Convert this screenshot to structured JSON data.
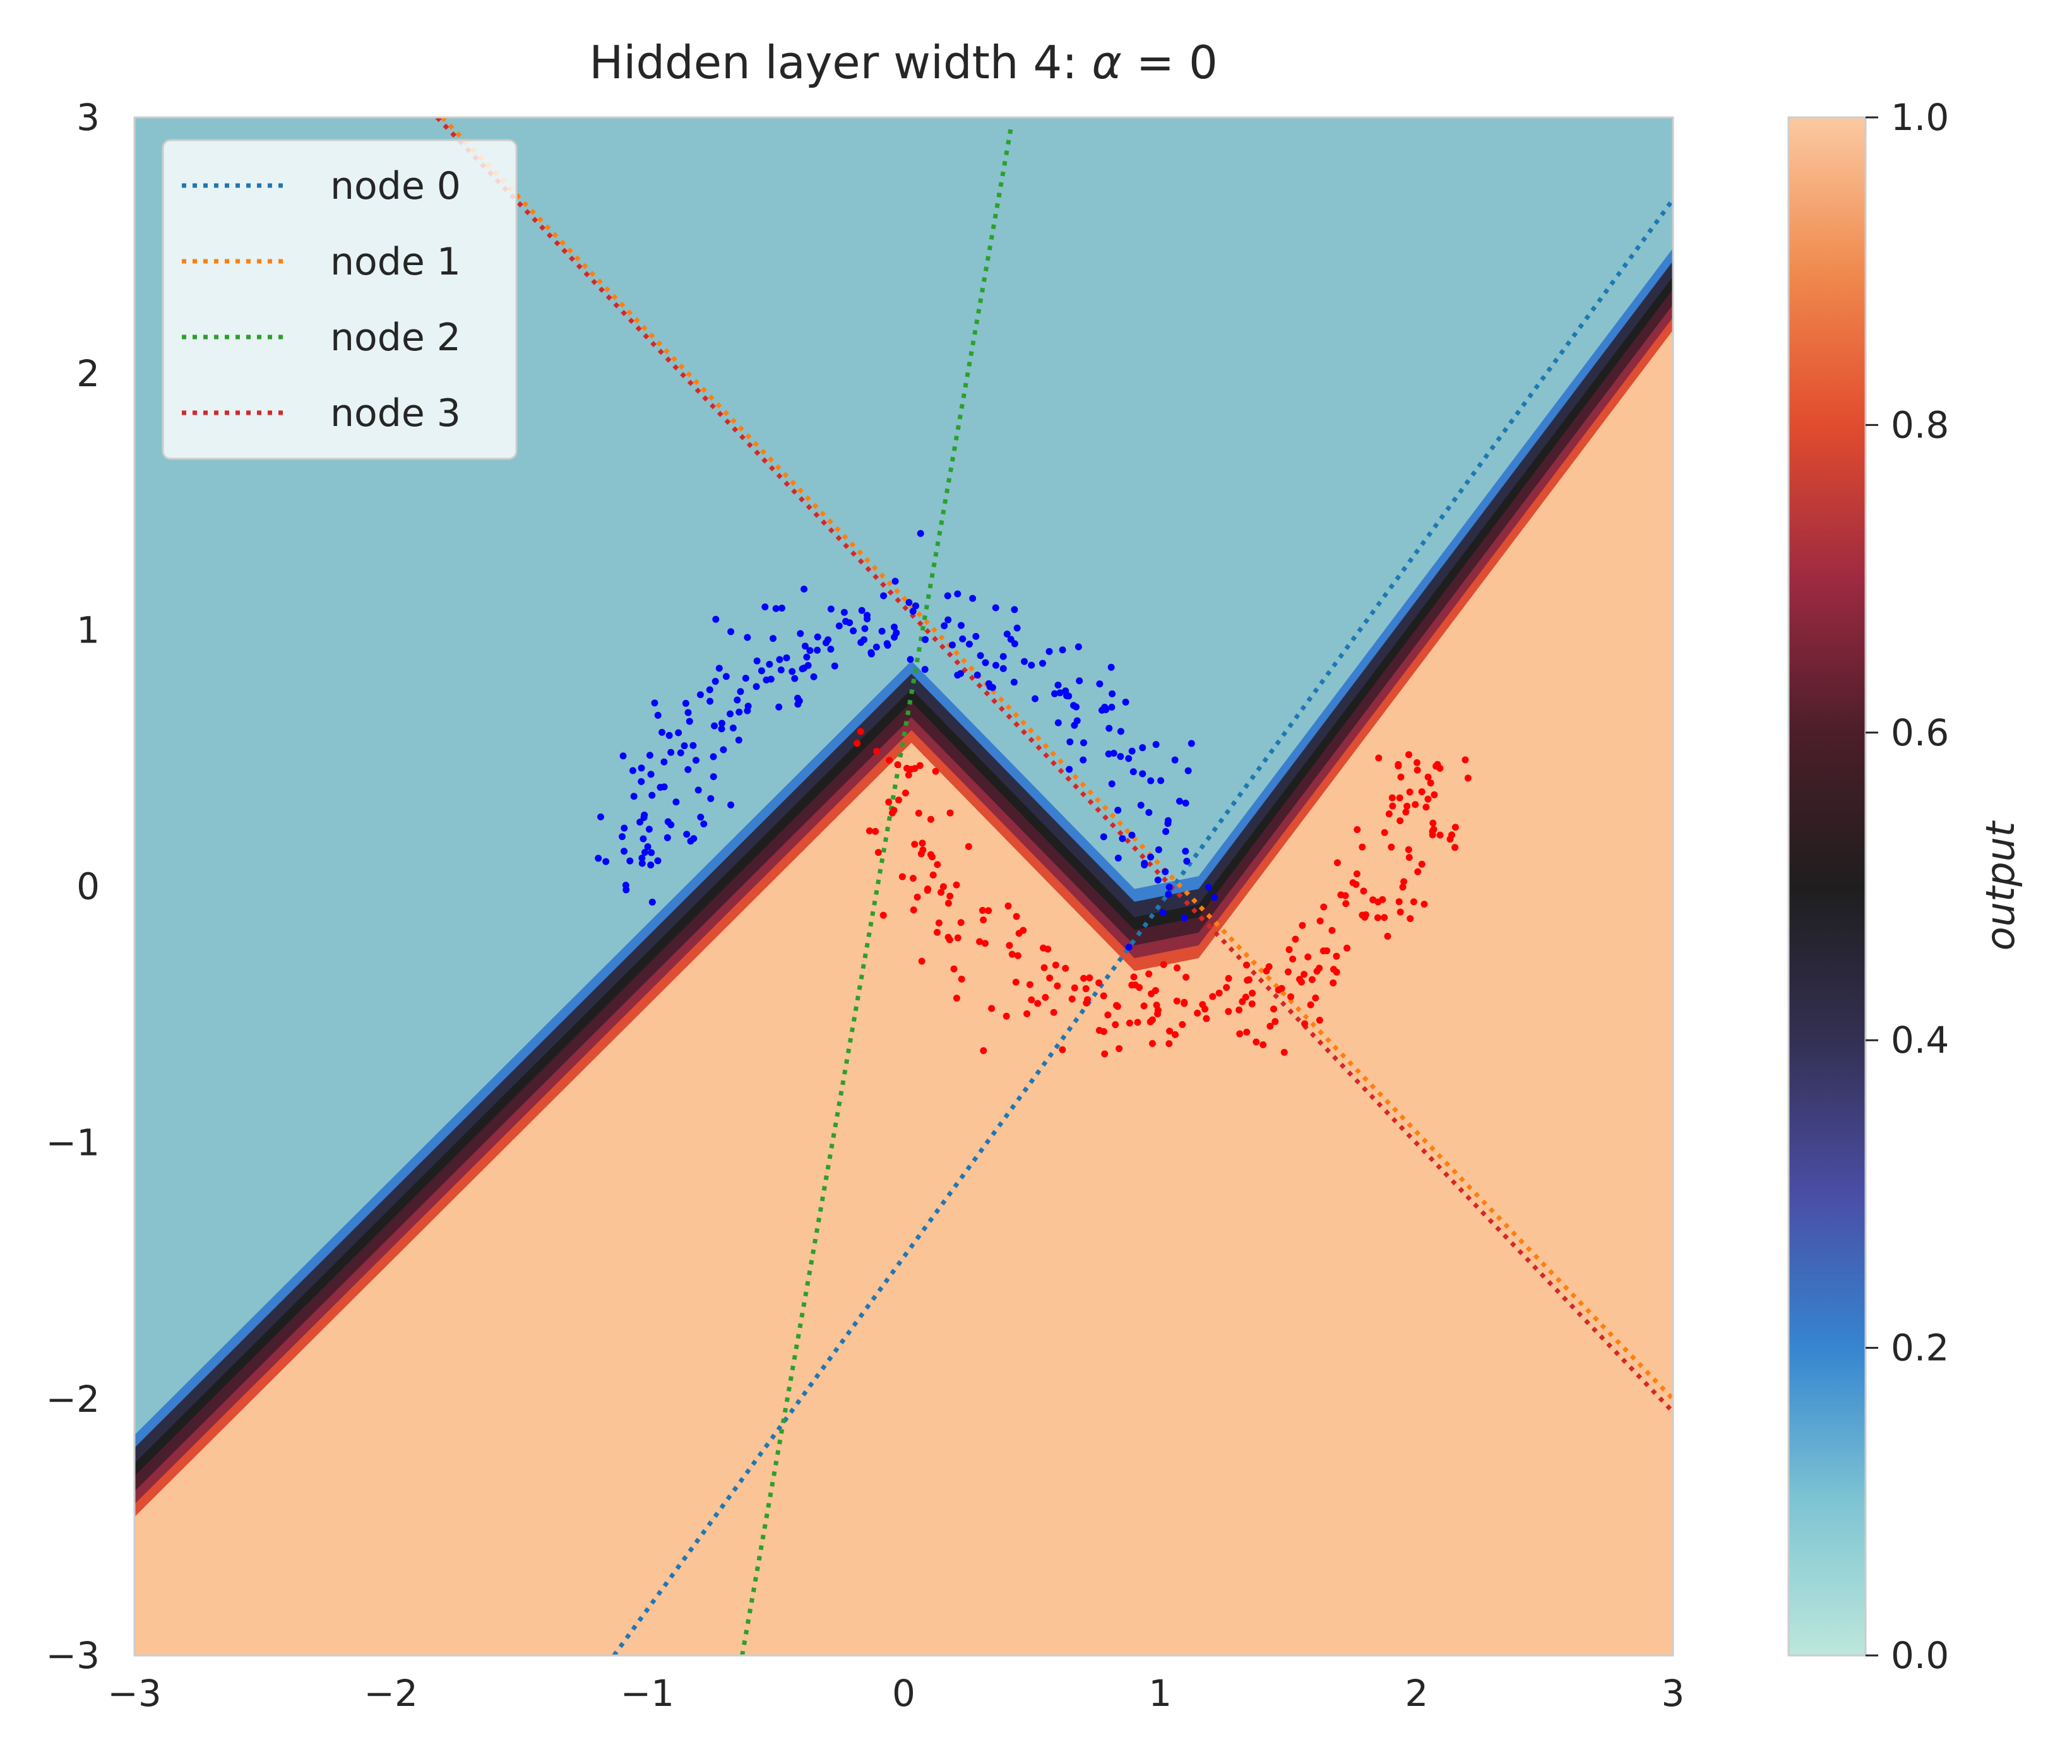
{
  "chart_data": {
    "type": "scatter",
    "title": {
      "prefix": "Hidden layer width 4: ",
      "symbol": "α",
      "suffix": " = 0"
    },
    "xlabel": "",
    "ylabel": "",
    "xlim": [
      -3,
      3
    ],
    "ylim": [
      -3,
      3
    ],
    "x_ticks": [
      -3,
      -2,
      -1,
      0,
      1,
      2,
      3
    ],
    "y_ticks": [
      -3,
      -2,
      -1,
      0,
      1,
      2,
      3
    ],
    "x_tick_labels": [
      "−3",
      "−2",
      "−1",
      "0",
      "1",
      "2",
      "3"
    ],
    "y_tick_labels": [
      "−3",
      "−2",
      "−1",
      "0",
      "1",
      "2",
      "3"
    ],
    "grid": false,
    "legend_position": "top-left",
    "colorbar": {
      "label": "output",
      "range": [
        0,
        1
      ],
      "ticks": [
        0.0,
        0.2,
        0.4,
        0.6,
        0.8,
        1.0
      ],
      "tick_labels": [
        "0.0",
        "0.2",
        "0.4",
        "0.6",
        "0.8",
        "1.0"
      ],
      "colormap": "icefire",
      "stops": [
        {
          "v": 0.0,
          "color": "#bde7db"
        },
        {
          "v": 0.1,
          "color": "#7ec4d3"
        },
        {
          "v": 0.2,
          "color": "#3585d0"
        },
        {
          "v": 0.3,
          "color": "#4a4ea5"
        },
        {
          "v": 0.4,
          "color": "#343053"
        },
        {
          "v": 0.5,
          "color": "#1f1e1e"
        },
        {
          "v": 0.6,
          "color": "#4c1e2a"
        },
        {
          "v": 0.7,
          "color": "#9e2a41"
        },
        {
          "v": 0.8,
          "color": "#e14c2e"
        },
        {
          "v": 0.9,
          "color": "#f08a4e"
        },
        {
          "v": 1.0,
          "color": "#fbc9a1"
        }
      ]
    },
    "decision_boundary": {
      "description": "output contours along piecewise linear boundary",
      "points": [
        [
          -3.0,
          -2.33
        ],
        [
          0.03,
          0.69
        ],
        [
          0.9,
          -0.2
        ],
        [
          1.15,
          -0.15
        ],
        [
          3.0,
          2.3
        ]
      ],
      "region_low_color": "#89c2cc",
      "region_high_color": "#fbc497",
      "bands": [
        {
          "offset": 0.14,
          "color": "#3a7fd0"
        },
        {
          "offset": 0.08,
          "color": "#2c2d44"
        },
        {
          "offset": 0.03,
          "color": "#1f1e1e"
        },
        {
          "offset": -0.03,
          "color": "#4a1e2c"
        },
        {
          "offset": -0.08,
          "color": "#8e2b3f"
        },
        {
          "offset": -0.13,
          "color": "#df4e32"
        }
      ]
    },
    "series": [
      {
        "name": "node 0",
        "style": "dotted",
        "color": "#1f77b4",
        "line": [
          [
            -1.13,
            -3.0
          ],
          [
            3.0,
            2.68
          ]
        ]
      },
      {
        "name": "node 1",
        "style": "dotted",
        "color": "#ff7f0e",
        "line": [
          [
            -1.8,
            3.0
          ],
          [
            3.0,
            -2.0
          ]
        ]
      },
      {
        "name": "node 2",
        "style": "dotted",
        "color": "#2ca02c",
        "line": [
          [
            -0.63,
            -3.0
          ],
          [
            0.42,
            2.97
          ]
        ]
      },
      {
        "name": "node 3",
        "style": "dotted",
        "color": "#d62728",
        "line": [
          [
            -1.82,
            3.0
          ],
          [
            3.0,
            -2.05
          ]
        ]
      }
    ],
    "scatter_series": [
      {
        "class": 0,
        "color": "#0000ff",
        "shape": "upper moon",
        "center": [
          0,
          0
        ],
        "radius": 1,
        "angle_range_deg": [
          0,
          180
        ],
        "noise": 0.1,
        "count": 250
      },
      {
        "class": 1,
        "color": "#ff0000",
        "shape": "lower moon",
        "center": [
          1,
          0.5
        ],
        "radius": 1,
        "angle_range_deg": [
          180,
          360
        ],
        "noise": 0.1,
        "count": 250
      }
    ]
  }
}
